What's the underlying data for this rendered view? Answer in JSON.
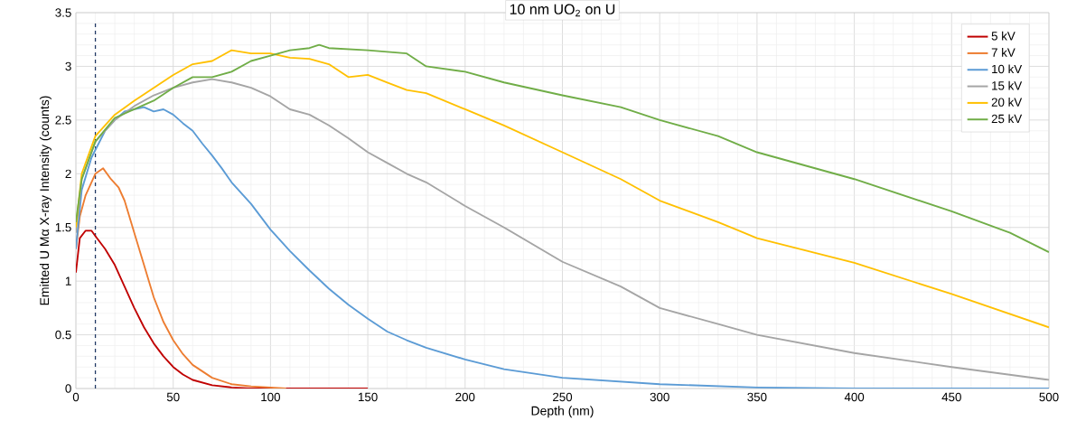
{
  "chart_data": {
    "type": "line",
    "title": "10 nm UO$_{2}$ on U",
    "xlabel": "Depth (nm)",
    "ylabel": "Emitted U Mα X-ray Intensity (counts)",
    "xlim": [
      0,
      500
    ],
    "ylim": [
      0,
      3.5
    ],
    "xticks": [
      0,
      50,
      100,
      150,
      200,
      250,
      300,
      350,
      400,
      450,
      500
    ],
    "yticks": [
      0,
      0.5,
      1,
      1.5,
      2,
      2.5,
      3,
      3.5
    ],
    "grid": true,
    "legend": "top right",
    "marker": "none",
    "line_style": "solid",
    "ref_lines": [
      {
        "axis": "x",
        "value": 10,
        "color": "#203864",
        "line_style": "dashed"
      }
    ],
    "series": [
      {
        "name": "5 kV",
        "color": "#c00000",
        "x": [
          0,
          2,
          5,
          8,
          10,
          15,
          20,
          25,
          30,
          35,
          40,
          45,
          50,
          55,
          60,
          70,
          80,
          90,
          100,
          150
        ],
        "values": [
          1.08,
          1.4,
          1.47,
          1.47,
          1.42,
          1.3,
          1.15,
          0.95,
          0.75,
          0.57,
          0.42,
          0.3,
          0.2,
          0.13,
          0.08,
          0.03,
          0.01,
          0,
          0,
          0
        ]
      },
      {
        "name": "7 kV",
        "color": "#ed7d31",
        "x": [
          0,
          2,
          5,
          8,
          10,
          14,
          18,
          22,
          25,
          30,
          35,
          40,
          45,
          50,
          55,
          60,
          70,
          80,
          90,
          100,
          108
        ],
        "values": [
          1.3,
          1.6,
          1.8,
          1.92,
          2.0,
          2.05,
          1.95,
          1.87,
          1.75,
          1.45,
          1.15,
          0.85,
          0.62,
          0.45,
          0.32,
          0.22,
          0.1,
          0.04,
          0.02,
          0.01,
          0
        ]
      },
      {
        "name": "10 kV",
        "color": "#5b9bd5",
        "x": [
          0,
          3,
          8,
          15,
          20,
          25,
          30,
          35,
          40,
          45,
          50,
          55,
          60,
          65,
          70,
          75,
          80,
          90,
          100,
          110,
          120,
          130,
          140,
          150,
          160,
          170,
          180,
          200,
          220,
          250,
          300,
          350,
          400,
          500
        ],
        "values": [
          1.3,
          1.85,
          2.15,
          2.4,
          2.5,
          2.58,
          2.6,
          2.62,
          2.58,
          2.6,
          2.55,
          2.47,
          2.4,
          2.28,
          2.17,
          2.05,
          1.92,
          1.72,
          1.48,
          1.28,
          1.1,
          0.93,
          0.78,
          0.65,
          0.53,
          0.45,
          0.38,
          0.27,
          0.18,
          0.1,
          0.04,
          0.01,
          0,
          0
        ]
      },
      {
        "name": "15 kV",
        "color": "#a5a5a5",
        "x": [
          0,
          3,
          10,
          20,
          30,
          40,
          50,
          60,
          70,
          80,
          90,
          100,
          110,
          120,
          130,
          140,
          150,
          160,
          170,
          180,
          200,
          220,
          250,
          280,
          300,
          330,
          350,
          400,
          450,
          500
        ],
        "values": [
          1.45,
          1.95,
          2.3,
          2.5,
          2.63,
          2.73,
          2.8,
          2.85,
          2.88,
          2.85,
          2.8,
          2.72,
          2.6,
          2.55,
          2.45,
          2.33,
          2.2,
          2.1,
          2.0,
          1.92,
          1.7,
          1.5,
          1.18,
          0.95,
          0.75,
          0.6,
          0.5,
          0.33,
          0.2,
          0.08
        ]
      },
      {
        "name": "20 kV",
        "color": "#ffc000",
        "x": [
          0,
          3,
          10,
          20,
          30,
          40,
          50,
          60,
          70,
          80,
          90,
          100,
          110,
          120,
          130,
          140,
          150,
          160,
          170,
          180,
          200,
          220,
          250,
          280,
          300,
          330,
          350,
          400,
          450,
          500
        ],
        "values": [
          1.5,
          2.0,
          2.35,
          2.55,
          2.68,
          2.8,
          2.92,
          3.02,
          3.05,
          3.15,
          3.12,
          3.12,
          3.08,
          3.07,
          3.02,
          2.9,
          2.92,
          2.85,
          2.78,
          2.75,
          2.6,
          2.45,
          2.2,
          1.95,
          1.75,
          1.55,
          1.4,
          1.17,
          0.88,
          0.57
        ]
      },
      {
        "name": "25 kV",
        "color": "#70ad47",
        "x": [
          0,
          3,
          10,
          20,
          30,
          40,
          50,
          60,
          70,
          80,
          90,
          100,
          110,
          120,
          125,
          130,
          150,
          170,
          180,
          200,
          220,
          250,
          280,
          300,
          330,
          350,
          400,
          450,
          480,
          500
        ],
        "values": [
          1.55,
          1.95,
          2.3,
          2.52,
          2.6,
          2.68,
          2.8,
          2.9,
          2.9,
          2.95,
          3.05,
          3.1,
          3.15,
          3.17,
          3.2,
          3.17,
          3.15,
          3.12,
          3.0,
          2.95,
          2.85,
          2.73,
          2.62,
          2.5,
          2.35,
          2.2,
          1.95,
          1.65,
          1.45,
          1.27
        ]
      }
    ]
  }
}
